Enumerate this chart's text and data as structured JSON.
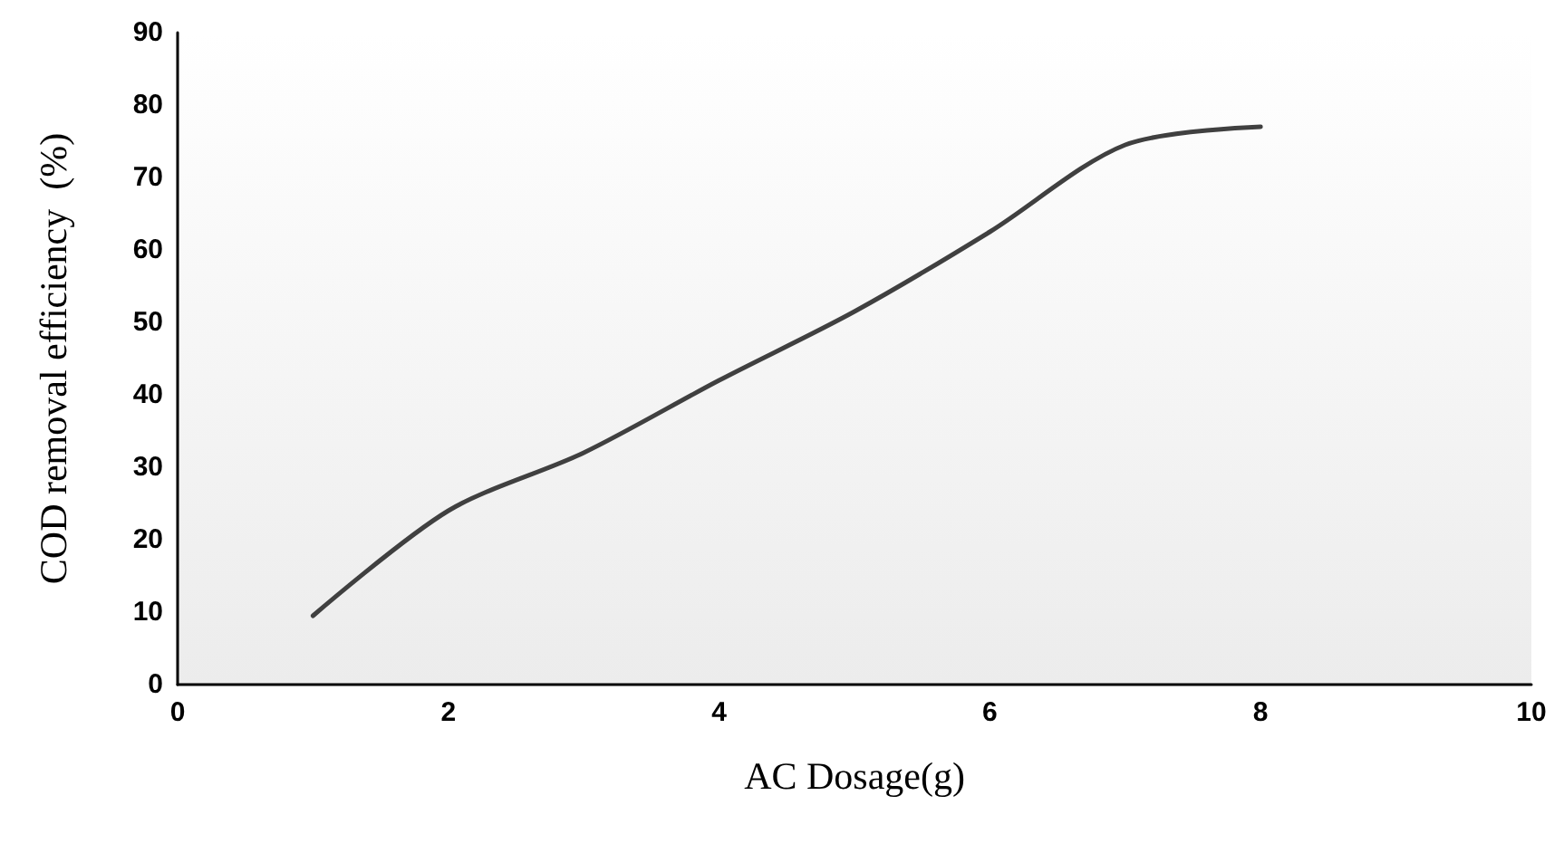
{
  "chart_data": {
    "type": "line",
    "xlabel": "AC Dosage(g)",
    "ylabel": "COD removal efficiency  (%)",
    "x": [
      1,
      2,
      3,
      4,
      5,
      6,
      7,
      8
    ],
    "series": [
      {
        "color": "#404040",
        "values": [
          9.5,
          24,
          32,
          42,
          51.5,
          62.5,
          74.5,
          77
        ]
      }
    ],
    "xlim": [
      0,
      10
    ],
    "xticks": [
      0,
      2,
      4,
      6,
      8,
      10
    ],
    "ylim": [
      0,
      90
    ],
    "yticks": [
      0,
      10,
      20,
      30,
      40,
      50,
      60,
      70,
      80,
      90
    ],
    "grid": false,
    "marker": "none",
    "line_style": "solid"
  }
}
